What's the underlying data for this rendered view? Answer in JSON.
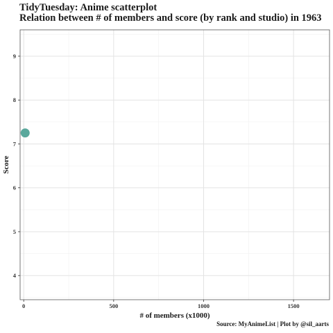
{
  "header": {
    "title": "TidyTuesday: Anime scatterplot",
    "subtitle": "Relation between # of members and score (by rank and studio) in 1963"
  },
  "caption": "Source: MyAnimeList | Plot by @sil_aarts",
  "chart_data": {
    "type": "scatter",
    "title": "TidyTuesday: Anime scatterplot",
    "subtitle": "Relation between # of members and score (by rank and studio) in 1963",
    "xlabel": "# of members (x1000)",
    "ylabel": "Score",
    "xlim": [
      -20,
      1700
    ],
    "ylim": [
      3.45,
      9.6
    ],
    "x_ticks": [
      0,
      500,
      1000,
      1500
    ],
    "y_ticks": [
      4,
      5,
      6,
      7,
      8,
      9
    ],
    "x_tick_labels": [
      "0",
      "500",
      "1000",
      "1500"
    ],
    "y_tick_labels": [
      "4",
      "5",
      "6",
      "7",
      "8",
      "9"
    ],
    "grid": true,
    "points": [
      {
        "x": 8,
        "y": 7.25,
        "color": "#5aa89c"
      }
    ]
  },
  "colors": {
    "point": "#5aa89c",
    "grid_major": "#e3e3e3",
    "grid_minor": "#f1f1f1",
    "panel_border": "#555555"
  }
}
